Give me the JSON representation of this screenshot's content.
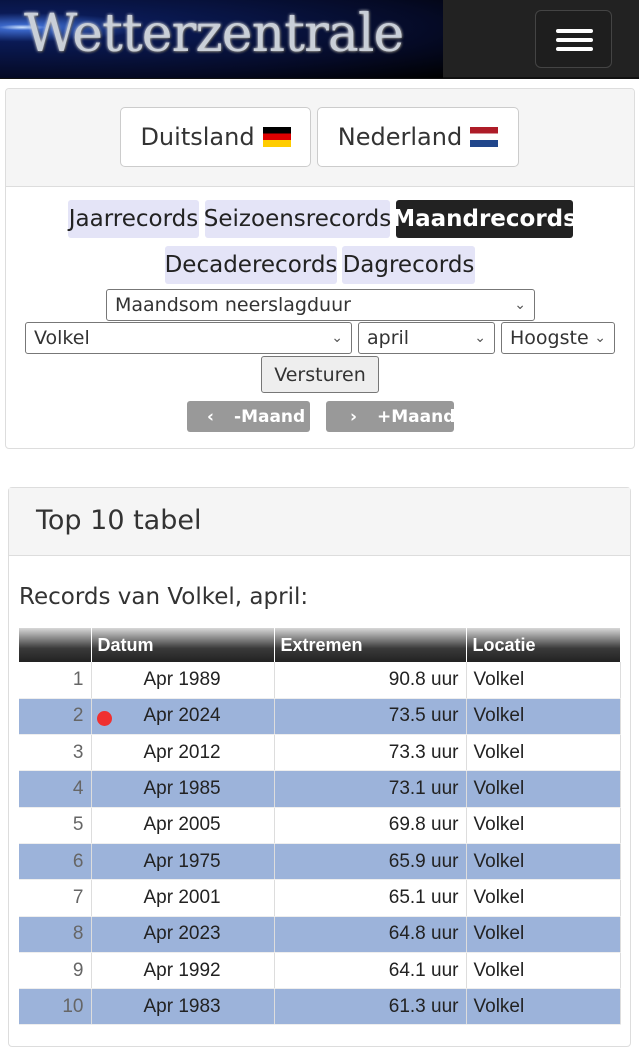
{
  "header": {
    "logo_text": "Wetterzentrale",
    "menu_icon": "hamburger-icon"
  },
  "countries": [
    {
      "label": "Duitsland",
      "flag": "flag-germany"
    },
    {
      "label": "Nederland",
      "flag": "flag-netherlands"
    }
  ],
  "tabs": [
    {
      "label": "Jaarrecords"
    },
    {
      "label": "Seizoensrecords"
    },
    {
      "label": "Maandrecords",
      "active": true
    },
    {
      "label": "Decaderecords"
    },
    {
      "label": "Dagrecords"
    }
  ],
  "form": {
    "parameter": "Maandsom neerslagduur",
    "station": "Volkel",
    "month": "april",
    "order": "Hoogste",
    "submit": "Versturen",
    "prev": "-Maand",
    "next": "+Maand"
  },
  "table_panel": {
    "title": "Top 10 tabel",
    "subtitle": "Records van Volkel, april:",
    "columns": [
      "",
      "Datum",
      "Extremen",
      "Locatie"
    ],
    "rows": [
      {
        "rank": "1",
        "date": "Apr 1989",
        "value": "90.8 uur",
        "loc": "Volkel"
      },
      {
        "rank": "2",
        "date": "Apr 2024",
        "value": "73.5 uur",
        "loc": "Volkel",
        "marker": true
      },
      {
        "rank": "3",
        "date": "Apr 2012",
        "value": "73.3 uur",
        "loc": "Volkel"
      },
      {
        "rank": "4",
        "date": "Apr 1985",
        "value": "73.1 uur",
        "loc": "Volkel"
      },
      {
        "rank": "5",
        "date": "Apr 2005",
        "value": "69.8 uur",
        "loc": "Volkel"
      },
      {
        "rank": "6",
        "date": "Apr 1975",
        "value": "65.9 uur",
        "loc": "Volkel"
      },
      {
        "rank": "7",
        "date": "Apr 2001",
        "value": "65.1 uur",
        "loc": "Volkel"
      },
      {
        "rank": "8",
        "date": "Apr 2023",
        "value": "64.8 uur",
        "loc": "Volkel"
      },
      {
        "rank": "9",
        "date": "Apr 1992",
        "value": "64.1 uur",
        "loc": "Volkel"
      },
      {
        "rank": "10",
        "date": "Apr 1983",
        "value": "61.3 uur",
        "loc": "Volkel"
      }
    ]
  },
  "colors": {
    "alt_row": "#9cb3da",
    "marker": "#f03030",
    "active_tab": "#222222",
    "tab": "#e4e4f7"
  }
}
